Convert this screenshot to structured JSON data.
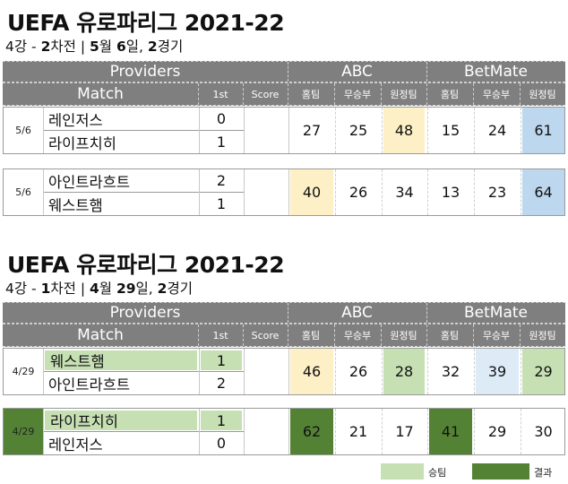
{
  "colors": {
    "header_bg": "#7f7f7f",
    "highlight_yellow": "#fdf0c6",
    "highlight_blue": "#bdd7ee",
    "highlight_lightblue": "#ddebf7",
    "win_green": "#c6e0b4",
    "result_green": "#548235"
  },
  "section1": {
    "title": "UEFA 유로파리그 2021-22",
    "subtitle_prefix": "4강 - ",
    "subtitle_num": "2",
    "subtitle_mid": "차전 | ",
    "subtitle_num2": "5",
    "subtitle_mid2": "월 ",
    "subtitle_num3": "6",
    "subtitle_mid3": "일,  ",
    "subtitle_num4": "2",
    "subtitle_end": "경기",
    "header": {
      "providers": "Providers",
      "abc": "ABC",
      "betmate": "BetMate",
      "match": "Match",
      "first": "1st",
      "score": "Score",
      "abc_home": "홈팀",
      "abc_draw": "무승부",
      "abc_away": "원정팀",
      "bm_home": "홈팀",
      "bm_draw": "무승부",
      "bm_away": "원정팀"
    },
    "matches": [
      {
        "date": "5/6",
        "home": "레인저스",
        "away": "라이프치히",
        "home_first": "0",
        "away_first": "1",
        "abc_home": "27",
        "abc_draw": "25",
        "abc_away": "48",
        "bm_home": "15",
        "bm_draw": "24",
        "bm_away": "61"
      },
      {
        "date": "5/6",
        "home": "아인트라흐트",
        "away": "웨스트햄",
        "home_first": "2",
        "away_first": "1",
        "abc_home": "40",
        "abc_draw": "26",
        "abc_away": "34",
        "bm_home": "13",
        "bm_draw": "23",
        "bm_away": "64"
      }
    ]
  },
  "section2": {
    "title": "UEFA 유로파리그 2021-22",
    "subtitle_prefix": "4강 - ",
    "subtitle_num": "1",
    "subtitle_mid": "차전 | ",
    "subtitle_num2": "4",
    "subtitle_mid2": "월 ",
    "subtitle_num3": "29",
    "subtitle_mid3": "일,  ",
    "subtitle_num4": "2",
    "subtitle_end": "경기",
    "header": {
      "providers": "Providers",
      "abc": "ABC",
      "betmate": "BetMate",
      "match": "Match",
      "first": "1st",
      "score": "Score",
      "abc_home": "홈팀",
      "abc_draw": "무승부",
      "abc_away": "원정팀",
      "bm_home": "홈팀",
      "bm_draw": "무승부",
      "bm_away": "원정팀"
    },
    "matches": [
      {
        "date": "4/29",
        "home": "웨스트햄",
        "away": "아인트라흐트",
        "home_first": "1",
        "away_first": "2",
        "abc_home": "46",
        "abc_draw": "26",
        "abc_away": "28",
        "bm_home": "32",
        "bm_draw": "39",
        "bm_away": "29"
      },
      {
        "date": "4/29",
        "home": "라이프치히",
        "away": "레인저스",
        "home_first": "1",
        "away_first": "0",
        "abc_home": "62",
        "abc_draw": "21",
        "abc_away": "17",
        "bm_home": "41",
        "bm_draw": "29",
        "bm_away": "30"
      }
    ]
  },
  "legend": {
    "win_label": "승팀",
    "result_label": "결과"
  }
}
